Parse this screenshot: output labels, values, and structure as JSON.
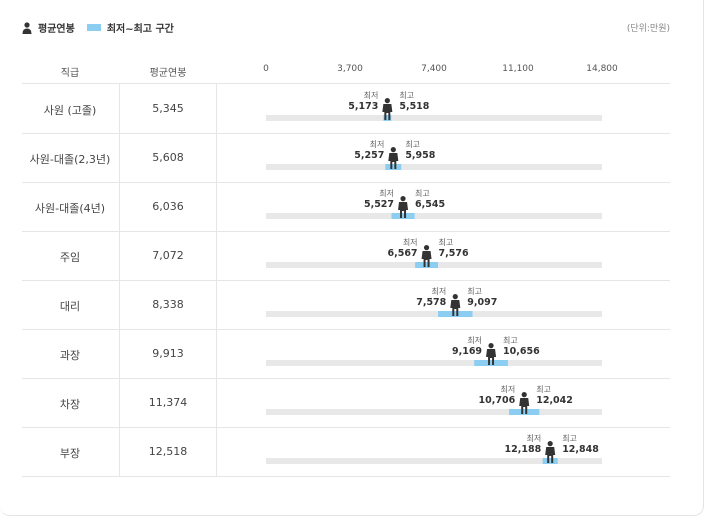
{
  "legend": {
    "avg_label": "평균연봉",
    "range_label": "최저~최고 구간"
  },
  "unit": "(단위:만원)",
  "columns": {
    "rank": "직급",
    "avg": "평균연봉"
  },
  "colors": {
    "range_bar": "#8ccef2",
    "track": "#e8e8e8",
    "person": "#333333"
  },
  "min_label": "최저",
  "max_label": "최고",
  "chart_data": {
    "type": "bar",
    "x_ticks": [
      "0",
      "3,700",
      "7,400",
      "11,100",
      "14,800"
    ],
    "xlim": [
      0,
      14800
    ],
    "categories": [
      "사원 (고졸)",
      "사원-대졸(2,3년)",
      "사원-대졸(4년)",
      "주임",
      "대리",
      "과장",
      "차장",
      "부장"
    ],
    "avg_display": [
      "5,345",
      "5,608",
      "6,036",
      "7,072",
      "8,338",
      "9,913",
      "11,374",
      "12,518"
    ],
    "avg": [
      5345,
      5608,
      6036,
      7072,
      8338,
      9913,
      11374,
      12518
    ],
    "min": [
      5173,
      5257,
      5527,
      6567,
      7578,
      9169,
      10706,
      12188
    ],
    "max": [
      5518,
      5958,
      6545,
      7576,
      9097,
      10656,
      12042,
      12848
    ],
    "min_display": [
      "5,173",
      "5,257",
      "5,527",
      "6,567",
      "7,578",
      "9,169",
      "10,706",
      "12,188"
    ],
    "max_display": [
      "5,518",
      "5,958",
      "6,545",
      "7,576",
      "9,097",
      "10,656",
      "12,042",
      "12,848"
    ]
  }
}
